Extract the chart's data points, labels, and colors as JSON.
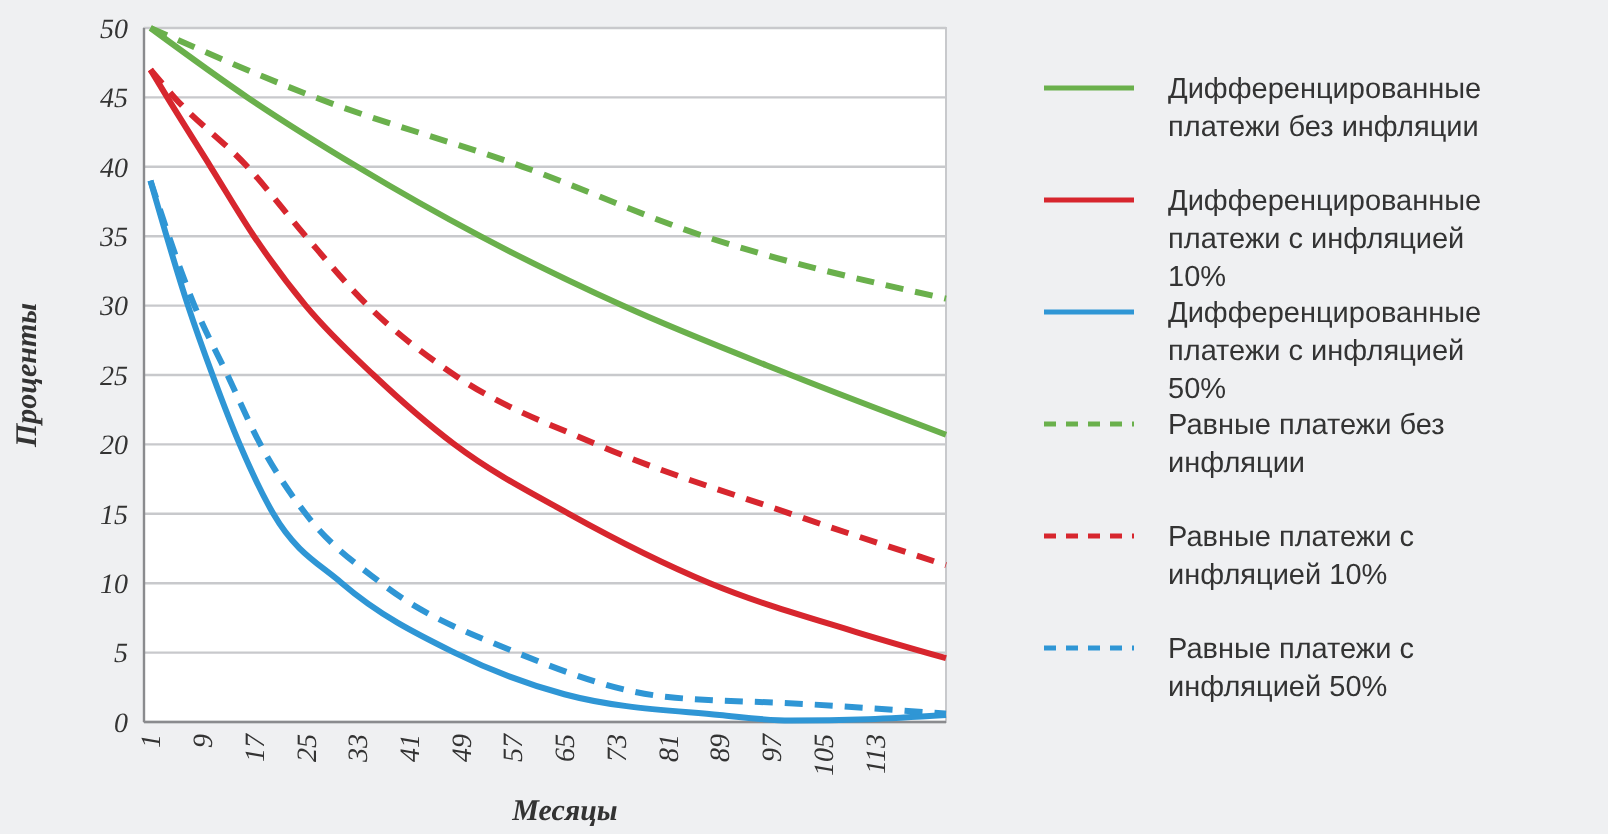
{
  "chart_data": {
    "type": "line",
    "xlabel": "Месяцы",
    "ylabel": "Проценты",
    "xlim": [
      0,
      124
    ],
    "ylim": [
      0,
      50
    ],
    "xticks": [
      1,
      9,
      17,
      25,
      33,
      41,
      49,
      57,
      65,
      73,
      81,
      89,
      97,
      105,
      113
    ],
    "yticks": [
      0,
      5,
      10,
      15,
      20,
      25,
      30,
      35,
      40,
      45,
      50
    ],
    "grid": "y",
    "legend": "right",
    "series": [
      {
        "name": "Дифференцированные платежи без инфляции",
        "color": "#6ab04c",
        "line_style": "solid",
        "x": [
          1,
          16,
          33,
          52,
          74,
          100,
          124
        ],
        "values": [
          50,
          45,
          40,
          35,
          30,
          25,
          20.7
        ]
      },
      {
        "name": "Дифференцированные платежи с инфляцией 10%",
        "color": "#d7262e",
        "line_style": "solid",
        "x": [
          1,
          3.6,
          10.3,
          17,
          25,
          35.5,
          48,
          65.7,
          87.5,
          110,
          124
        ],
        "values": [
          47,
          45,
          40,
          35,
          30,
          25,
          20,
          15,
          10,
          6.5,
          4.6
        ]
      },
      {
        "name": "Дифференцированные платежи с инфляцией 50%",
        "color": "#2f96d5",
        "line_style": "solid",
        "x": [
          1,
          6.8,
          10.6,
          14.8,
          20,
          30.6,
          48,
          65,
          89,
          100,
          112,
          124
        ],
        "values": [
          39,
          30,
          25,
          20,
          15,
          10,
          5,
          2,
          0.5,
          0.1,
          0.2,
          0.5
        ]
      },
      {
        "name": "Равные платежи без инфляции",
        "color": "#6ab04c",
        "line_style": "dashed",
        "x": [
          1,
          26.5,
          58.6,
          86.6,
          124
        ],
        "values": [
          50,
          45,
          40,
          35,
          30.5
        ]
      },
      {
        "name": "Равные платежи с инфляцией 10%",
        "color": "#d7262e",
        "line_style": "dashed",
        "x": [
          1,
          4.7,
          16,
          25,
          34.6,
          48,
          70,
          100,
          124
        ],
        "values": [
          47,
          45,
          40,
          35,
          30,
          25,
          20,
          15,
          11.3
        ]
      },
      {
        "name": "Равные платежи с инфляцией 50%",
        "color": "#2f96d5",
        "line_style": "dashed",
        "x": [
          1,
          7.8,
          12.9,
          18,
          25,
          36.7,
          57.6,
          81,
          102,
          124
        ],
        "values": [
          39,
          30,
          25,
          20,
          15,
          10,
          5,
          1.8,
          1.3,
          0.6
        ]
      }
    ]
  }
}
